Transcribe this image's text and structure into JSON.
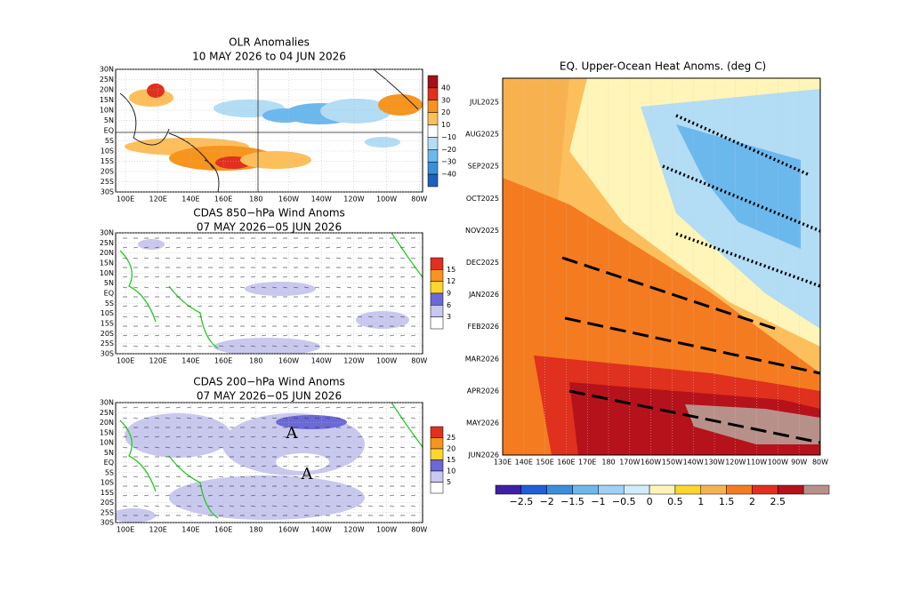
{
  "panels": [
    {
      "title": [
        "OLR Anomalies",
        "10 MAY 2026 to 04 JUN 2026"
      ],
      "lat_labels": [
        "30N",
        "25N",
        "20N",
        "15N",
        "10N",
        "5N",
        "EQ",
        "5S",
        "10S",
        "15S",
        "20S",
        "25S",
        "30S"
      ],
      "lon_labels": [
        "100E",
        "120E",
        "140E",
        "160E",
        "180",
        "160W",
        "140W",
        "120W",
        "100W",
        "80W"
      ],
      "colorbar": [
        "40",
        "30",
        "20",
        "10",
        "−10",
        "−20",
        "−30",
        "−40"
      ]
    },
    {
      "title": [
        "CDAS 850−hPa Wind Anoms",
        "07 MAY 2026−05 JUN 2026"
      ],
      "lat_labels": [
        "30N",
        "25N",
        "20N",
        "15N",
        "10N",
        "5N",
        "EQ",
        "5S",
        "10S",
        "15S",
        "20S",
        "25S",
        "30S"
      ],
      "lon_labels": [
        "100E",
        "120E",
        "140E",
        "160E",
        "180",
        "160W",
        "140W",
        "120W",
        "100W",
        "80W"
      ],
      "colorbar": [
        "15",
        "12",
        "9",
        "6",
        "3"
      ]
    },
    {
      "title": [
        "CDAS 200−hPa Wind Anoms",
        "07 MAY 2026−05 JUN 2026"
      ],
      "lat_labels": [
        "30N",
        "25N",
        "20N",
        "15N",
        "10N",
        "5N",
        "EQ",
        "5S",
        "10S",
        "15S",
        "20S",
        "25S",
        "30S"
      ],
      "lon_labels": [
        "100E",
        "120E",
        "140E",
        "160E",
        "180",
        "160W",
        "140W",
        "120W",
        "100W",
        "80W"
      ],
      "colorbar": [
        "25",
        "20",
        "15",
        "10",
        "5"
      ],
      "annotations": [
        "A",
        "A"
      ]
    }
  ],
  "hovmoller": {
    "title": "EQ. Upper-Ocean Heat Anoms. (deg C)",
    "time_labels": [
      "JUL2025",
      "AUG2025",
      "SEP2025",
      "OCT2025",
      "NOV2025",
      "DEC2025",
      "JAN2026",
      "FEB2026",
      "MAR2026",
      "APR2026",
      "MAY2026",
      "JUN2026"
    ],
    "lon_labels": [
      "130E",
      "140E",
      "150E",
      "160E",
      "170E",
      "180",
      "170W",
      "160W",
      "150W",
      "140W",
      "130W",
      "120W",
      "110W",
      "100W",
      "90W",
      "80W"
    ],
    "colorbar": [
      "−2.5",
      "−2",
      "−1.5",
      "−1",
      "−0.5",
      "0",
      "0.5",
      "1",
      "1.5",
      "2",
      "2.5"
    ]
  }
}
